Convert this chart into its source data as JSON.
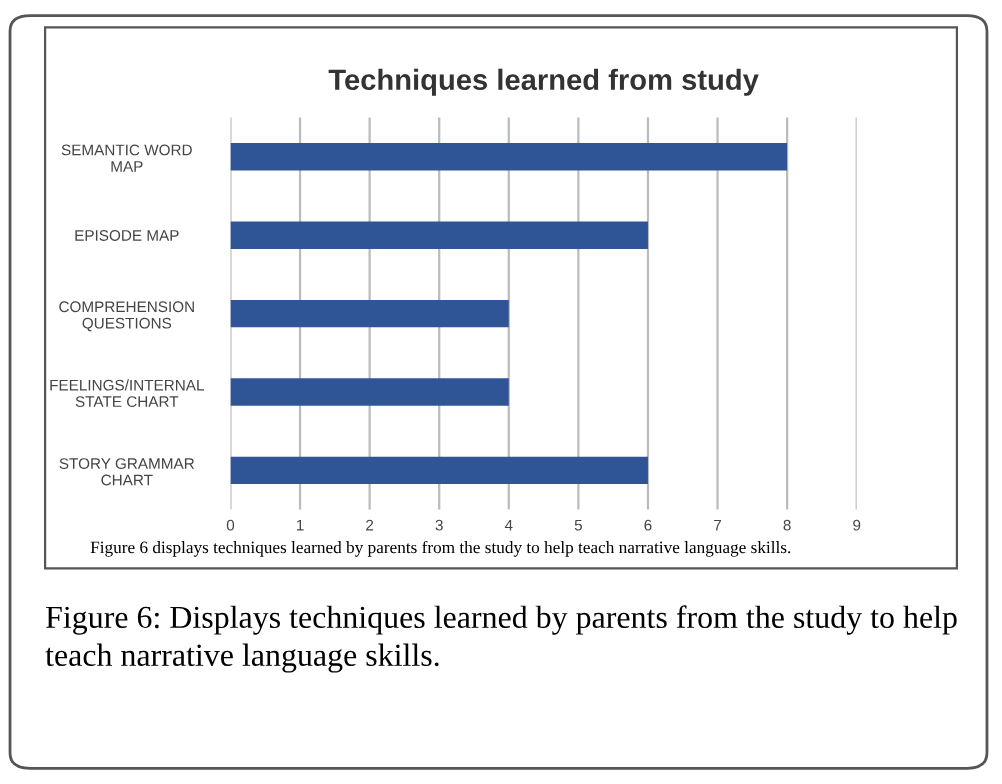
{
  "chart_data": {
    "type": "bar",
    "orientation": "horizontal",
    "title": "Techniques learned from study",
    "categories": [
      "SEMANTIC WORD\nMAP",
      "EPISODE MAP",
      "COMPREHENSION\nQUESTIONS",
      "FEELINGS/INTERNAL\nSTATE CHART",
      "STORY GRAMMAR\nCHART"
    ],
    "values": [
      8,
      6,
      4,
      4,
      6
    ],
    "color": "#2f5597",
    "xlim": [
      0,
      9
    ],
    "xticks": [
      0,
      1,
      2,
      3,
      4,
      5,
      6,
      7,
      8,
      9
    ],
    "grid": "x",
    "annotations": [
      "Figure 6 displays techniques learned by parents from the study to help teach narrative language skills.",
      "Figure 6: Displays techniques learned by parents from the study to help teach narrative language skills."
    ]
  }
}
